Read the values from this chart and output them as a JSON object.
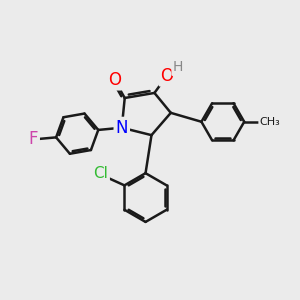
{
  "bg_color": "#ebebeb",
  "bond_color": "#1a1a1a",
  "bond_width": 1.8,
  "atom_colors": {
    "N": "#0000ff",
    "O": "#ff0000",
    "F": "#cc44aa",
    "Cl": "#33bb33",
    "H": "#888888",
    "C": "#1a1a1a"
  },
  "figsize": [
    3.0,
    3.0
  ],
  "dpi": 100
}
